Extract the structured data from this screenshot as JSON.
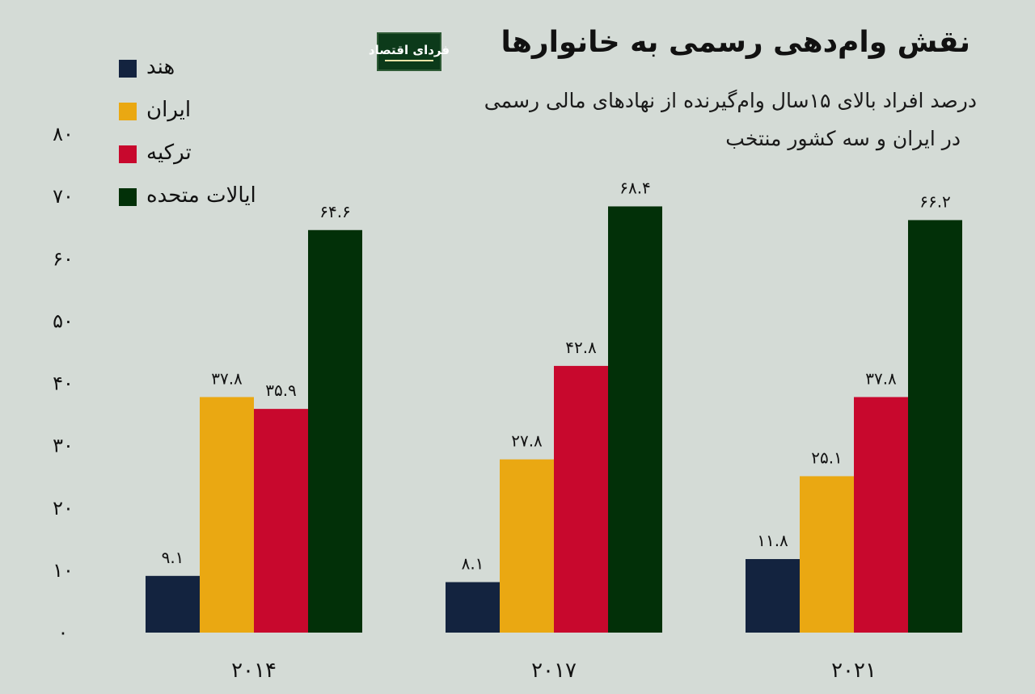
{
  "header": {
    "title": "نقش وام‌دهی رسمی به خانوارها",
    "subtitle_line1": "درصد افراد بالای ۱۵سال وام‌گیرنده از نهادهای مالی رسمی",
    "subtitle_line2": "در ایران و سه کشور منتخب",
    "logo_text": "فردای اقتصاد"
  },
  "colors": {
    "background": "#d4dbd6",
    "india": "#13233f",
    "iran": "#eaa812",
    "turkey": "#c8082d",
    "usa": "#023008"
  },
  "chart_data": {
    "type": "bar",
    "categories": [
      "۲۰۱۴",
      "۲۰۱۷",
      "۲۰۲۱"
    ],
    "series": [
      {
        "name": "هند",
        "values": [
          9.1,
          8.1,
          11.8
        ],
        "labels": [
          "۹.۱",
          "۸.۱",
          "۱۱.۸"
        ],
        "color": "#13233f"
      },
      {
        "name": "ایران",
        "values": [
          37.8,
          27.8,
          25.1
        ],
        "labels": [
          "۳۷.۸",
          "۲۷.۸",
          "۲۵.۱"
        ],
        "color": "#eaa812"
      },
      {
        "name": "ترکیه",
        "values": [
          35.9,
          42.8,
          37.8
        ],
        "labels": [
          "۳۵.۹",
          "۴۲.۸",
          "۳۷.۸"
        ],
        "color": "#c8082d"
      },
      {
        "name": "ایالات متحده",
        "values": [
          64.6,
          68.4,
          66.2
        ],
        "labels": [
          "۶۴.۶",
          "۶۸.۴",
          "۶۶.۲"
        ],
        "color": "#023008"
      }
    ],
    "y_ticks": [
      0,
      10,
      20,
      30,
      40,
      50,
      60,
      70,
      80
    ],
    "y_tick_labels": [
      "۰",
      "۱۰",
      "۲۰",
      "۳۰",
      "۴۰",
      "۵۰",
      "۶۰",
      "۷۰",
      "۸۰"
    ],
    "ylim": [
      0,
      80
    ],
    "grid": false,
    "legend_position": "top-left"
  }
}
